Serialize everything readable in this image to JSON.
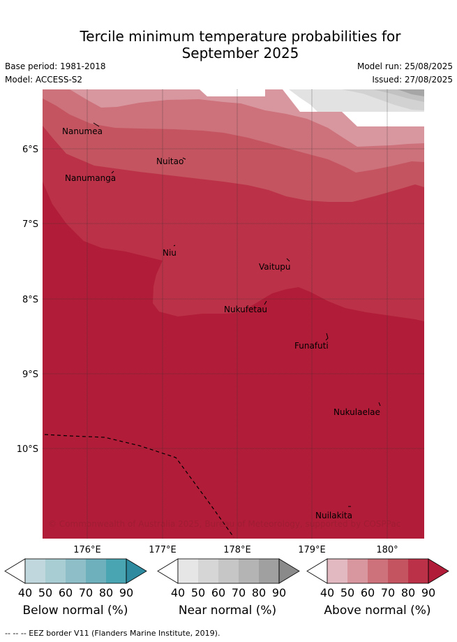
{
  "title_line1": "Tercile minimum temperature probabilities for",
  "title_line2": "September 2025",
  "base_period": "Base period: 1981-2018",
  "model": "Model: ACCESS-S2",
  "model_run": "Model run: 25/08/2025",
  "issued": "Issued: 27/08/2025",
  "copyright": "© Commonwealth of Australia 2025, Bureau of Meteorology, supported by COSPPac",
  "footer": "--  --  -- EEZ border V11 (Flanders Marine Institute, 2019).",
  "map": {
    "lon_labels": [
      "176°E",
      "177°E",
      "178°E",
      "179°E",
      "180°"
    ],
    "lat_labels": [
      "6°S",
      "7°S",
      "8°S",
      "9°S",
      "10°S"
    ],
    "places": [
      "Nanumea",
      "Nuitao",
      "Nanumanga",
      "Niu",
      "Vaitupu",
      "Nukufetau",
      "Funafuti",
      "Nukulaelae",
      "Nuilakita"
    ]
  },
  "legends": [
    {
      "caption": "Below normal (%)",
      "ticks": [
        "40",
        "50",
        "60",
        "70",
        "80",
        "90"
      ],
      "colors": [
        "#ffffff",
        "#c0d8dd",
        "#a8cdd2",
        "#8ebfc8",
        "#6fb0bd",
        "#4aa5b2",
        "#2e8b9f"
      ]
    },
    {
      "caption": "Near normal (%)",
      "ticks": [
        "40",
        "50",
        "60",
        "70",
        "80",
        "90"
      ],
      "colors": [
        "#ffffff",
        "#e6e6e6",
        "#d6d6d6",
        "#c6c6c6",
        "#b4b4b4",
        "#a0a0a0",
        "#8a8a8a"
      ]
    },
    {
      "caption": "Above normal (%)",
      "ticks": [
        "40",
        "50",
        "60",
        "70",
        "80",
        "90"
      ],
      "colors": [
        "#ffffff",
        "#e2b9c0",
        "#d8979f",
        "#cd717b",
        "#c4545f",
        "#bb3248",
        "#b11d38"
      ]
    }
  ],
  "colors": {
    "above_50": "#d8979f",
    "above_60": "#cd717b",
    "above_70": "#c4545f",
    "above_80": "#bb3248",
    "above_90": "#b11d38",
    "near_40": "#e2e2e2",
    "near_50": "#d2d2d2",
    "near_60": "#c2c2c2",
    "near_70": "#a6a6a6"
  }
}
